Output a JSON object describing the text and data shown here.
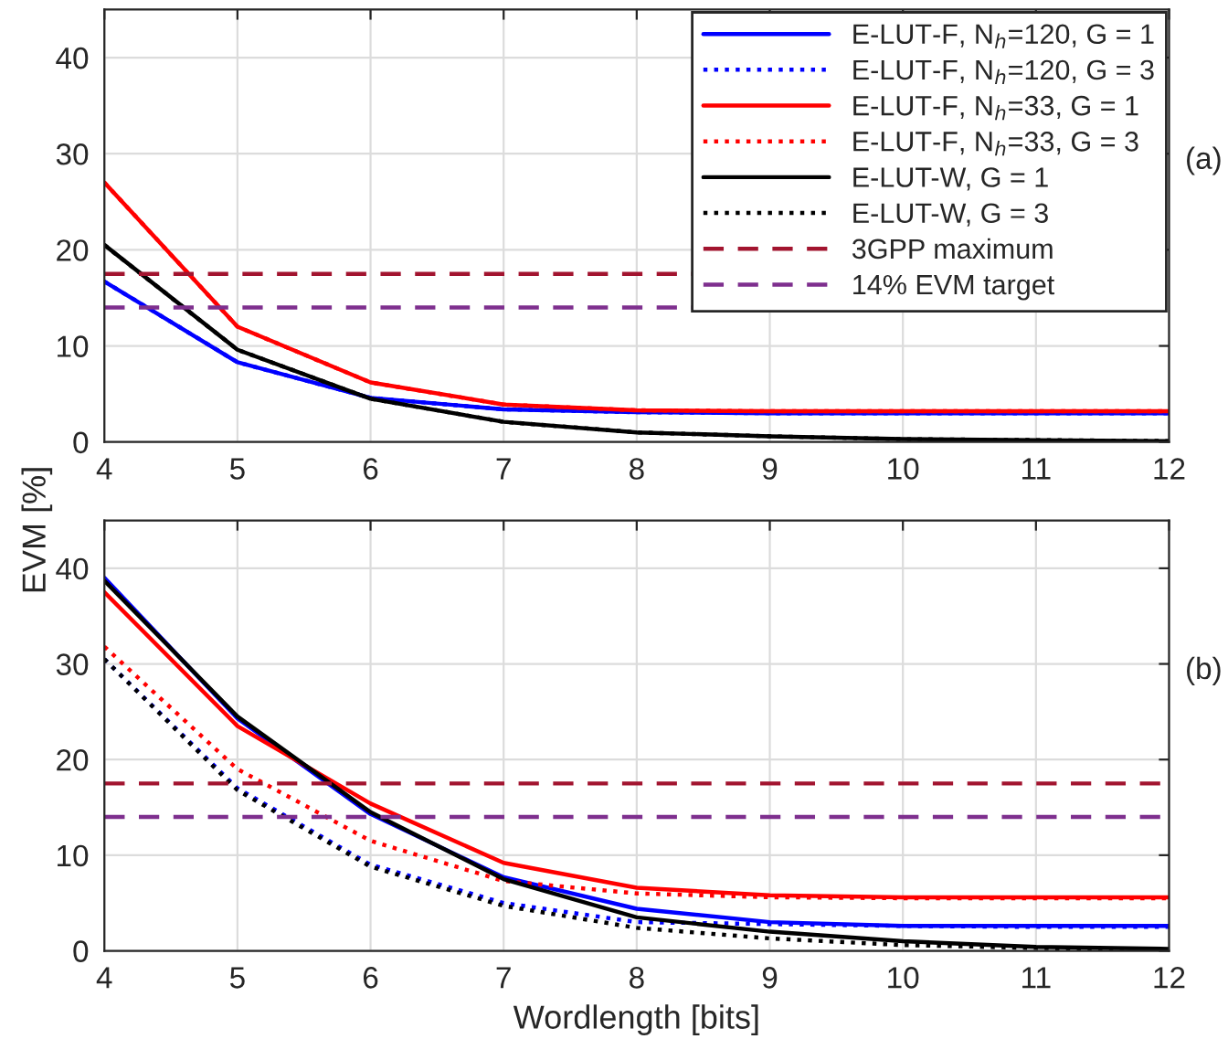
{
  "chart_data": [
    {
      "type": "line",
      "ylabel": "EVM [%]",
      "x": [
        4,
        5,
        6,
        7,
        8,
        9,
        10,
        11,
        12
      ],
      "xlim": [
        4,
        12
      ],
      "xticks": [
        4,
        5,
        6,
        7,
        8,
        9,
        10,
        11,
        12
      ],
      "ylim": [
        0,
        45
      ],
      "yticks": [
        0,
        10,
        20,
        30,
        40
      ],
      "grid": true,
      "legend": "top right",
      "annotations": [
        "(a)"
      ],
      "series": [
        {
          "name": "E-LUT-F, N$_{h}$=120, G = 1",
          "color": "#0000ff",
          "line_style": "solid",
          "values": [
            16.7,
            8.3,
            4.6,
            3.4,
            3.1,
            3.0,
            3.0,
            3.0,
            3.0
          ]
        },
        {
          "name": "E-LUT-F, N$_{h}$=120, G = 3",
          "color": "#0000ff",
          "line_style": "dotted",
          "values": [
            16.7,
            8.3,
            4.6,
            3.4,
            3.1,
            3.0,
            3.0,
            3.0,
            3.0
          ]
        },
        {
          "name": "E-LUT-F, N$_{h}$=33, G = 1",
          "color": "#ff0000",
          "line_style": "solid",
          "values": [
            27,
            12,
            6.2,
            3.9,
            3.3,
            3.2,
            3.2,
            3.2,
            3.2
          ]
        },
        {
          "name": "E-LUT-F, N$_{h}$=33, G = 3",
          "color": "#ff0000",
          "line_style": "dotted",
          "values": [
            27,
            12,
            6.2,
            3.9,
            3.3,
            3.2,
            3.2,
            3.2,
            3.2
          ]
        },
        {
          "name": "E-LUT-W, G = 1",
          "color": "#000000",
          "line_style": "solid",
          "values": [
            20.5,
            9.6,
            4.5,
            2.1,
            1.0,
            0.6,
            0.3,
            0.2,
            0.1
          ]
        },
        {
          "name": "E-LUT-W, G = 3",
          "color": "#000000",
          "line_style": "dotted",
          "values": [
            20.5,
            9.6,
            4.5,
            2.1,
            1.0,
            0.6,
            0.3,
            0.2,
            0.1
          ]
        }
      ],
      "ref_lines": [
        {
          "axis": "y",
          "value": 17.5,
          "label": "3GPP maximum",
          "color": "#a2142f",
          "line_style": "dashed"
        },
        {
          "axis": "y",
          "value": 14,
          "label": "14% EVM target",
          "color": "#7e2f8e",
          "line_style": "dashed"
        }
      ]
    },
    {
      "type": "line",
      "xlabel": "Wordlength [bits]",
      "x": [
        4,
        5,
        6,
        7,
        8,
        9,
        10,
        11,
        12
      ],
      "xlim": [
        4,
        12
      ],
      "xticks": [
        4,
        5,
        6,
        7,
        8,
        9,
        10,
        11,
        12
      ],
      "ylim": [
        0,
        45
      ],
      "yticks": [
        0,
        10,
        20,
        30,
        40
      ],
      "grid": true,
      "annotations": [
        "(b)"
      ],
      "series": [
        {
          "color": "#0000ff",
          "line_style": "solid",
          "values": [
            39,
            24.3,
            14.3,
            7.7,
            4.4,
            3.0,
            2.6,
            2.6,
            2.6
          ]
        },
        {
          "color": "#0000ff",
          "line_style": "dotted",
          "values": [
            30.5,
            17,
            9,
            5,
            3.0,
            2.8,
            2.6,
            2.5,
            2.5
          ]
        },
        {
          "color": "#ff0000",
          "line_style": "solid",
          "values": [
            37.5,
            23.5,
            15.4,
            9.2,
            6.6,
            5.8,
            5.6,
            5.6,
            5.6
          ]
        },
        {
          "color": "#ff0000",
          "line_style": "dotted",
          "values": [
            31.8,
            19,
            11.5,
            7.3,
            6.0,
            5.6,
            5.5,
            5.5,
            5.5
          ]
        },
        {
          "color": "#000000",
          "line_style": "solid",
          "values": [
            38.7,
            24.5,
            14.5,
            7.5,
            3.5,
            2.0,
            1.0,
            0.4,
            0.2
          ]
        },
        {
          "color": "#000000",
          "line_style": "dotted",
          "values": [
            30.5,
            16.8,
            8.8,
            4.7,
            2.4,
            1.3,
            0.6,
            0.3,
            0.1
          ]
        }
      ],
      "ref_lines": [
        {
          "axis": "y",
          "value": 17.5,
          "color": "#a2142f",
          "line_style": "dashed"
        },
        {
          "axis": "y",
          "value": 14,
          "color": "#7e2f8e",
          "line_style": "dashed"
        }
      ]
    }
  ]
}
